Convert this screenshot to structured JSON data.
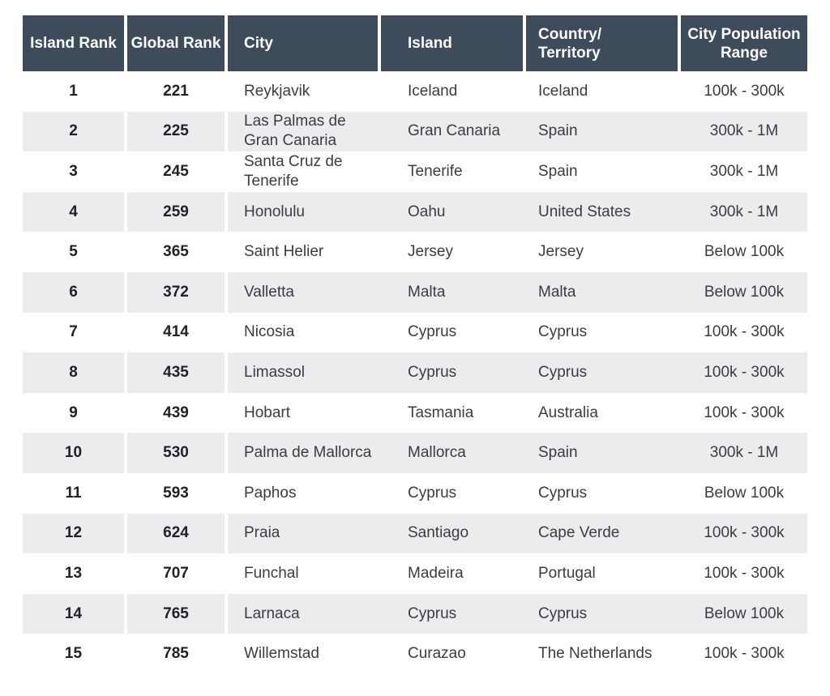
{
  "colors": {
    "header_bg": "#3e4b5a",
    "header_text": "#ffffff",
    "row_alt_bg": "#ebecee",
    "body_text": "#3c3c40",
    "rank_text": "#212126",
    "page_bg": "#ffffff"
  },
  "table": {
    "columns": [
      {
        "label": "Island Rank"
      },
      {
        "label": "Global Rank"
      },
      {
        "label": "City"
      },
      {
        "label": "Island"
      },
      {
        "label": "Country/\nTerritory"
      },
      {
        "label": "City Population\nRange"
      }
    ],
    "rows": [
      [
        "1",
        "221",
        "Reykjavik",
        "Iceland",
        "Iceland",
        "100k - 300k"
      ],
      [
        "2",
        "225",
        "Las Palmas de\nGran Canaria",
        "Gran Canaria",
        "Spain",
        "300k - 1M"
      ],
      [
        "3",
        "245",
        "Santa Cruz de\nTenerife",
        "Tenerife",
        "Spain",
        "300k - 1M"
      ],
      [
        "4",
        "259",
        "Honolulu",
        "Oahu",
        "United States",
        "300k - 1M"
      ],
      [
        "5",
        "365",
        "Saint Helier",
        "Jersey",
        "Jersey",
        "Below 100k"
      ],
      [
        "6",
        "372",
        "Valletta",
        "Malta",
        "Malta",
        "Below 100k"
      ],
      [
        "7",
        "414",
        "Nicosia",
        "Cyprus",
        "Cyprus",
        "100k - 300k"
      ],
      [
        "8",
        "435",
        "Limassol",
        "Cyprus",
        "Cyprus",
        "100k - 300k"
      ],
      [
        "9",
        "439",
        "Hobart",
        "Tasmania",
        "Australia",
        "100k - 300k"
      ],
      [
        "10",
        "530",
        "Palma de Mallorca",
        "Mallorca",
        "Spain",
        "300k - 1M"
      ],
      [
        "11",
        "593",
        "Paphos",
        "Cyprus",
        "Cyprus",
        "Below 100k"
      ],
      [
        "12",
        "624",
        "Praia",
        "Santiago",
        "Cape Verde",
        "100k - 300k"
      ],
      [
        "13",
        "707",
        "Funchal",
        "Madeira",
        "Portugal",
        "100k - 300k"
      ],
      [
        "14",
        "765",
        "Larnaca",
        "Cyprus",
        "Cyprus",
        "Below 100k"
      ],
      [
        "15",
        "785",
        "Willemstad",
        "Curazao",
        "The Netherlands",
        "100k - 300k"
      ]
    ]
  },
  "chart_data": {
    "type": "table",
    "title": "",
    "columns": [
      "Island Rank",
      "Global Rank",
      "City",
      "Island",
      "Country/Territory",
      "City Population Range"
    ],
    "rows": [
      [
        1,
        221,
        "Reykjavik",
        "Iceland",
        "Iceland",
        "100k - 300k"
      ],
      [
        2,
        225,
        "Las Palmas de Gran Canaria",
        "Gran Canaria",
        "Spain",
        "300k - 1M"
      ],
      [
        3,
        245,
        "Santa Cruz de Tenerife",
        "Tenerife",
        "Spain",
        "300k - 1M"
      ],
      [
        4,
        259,
        "Honolulu",
        "Oahu",
        "United States",
        "300k - 1M"
      ],
      [
        5,
        365,
        "Saint Helier",
        "Jersey",
        "Jersey",
        "Below 100k"
      ],
      [
        6,
        372,
        "Valletta",
        "Malta",
        "Malta",
        "Below 100k"
      ],
      [
        7,
        414,
        "Nicosia",
        "Cyprus",
        "Cyprus",
        "100k - 300k"
      ],
      [
        8,
        435,
        "Limassol",
        "Cyprus",
        "Cyprus",
        "100k - 300k"
      ],
      [
        9,
        439,
        "Hobart",
        "Tasmania",
        "Australia",
        "100k - 300k"
      ],
      [
        10,
        530,
        "Palma de Mallorca",
        "Mallorca",
        "Spain",
        "300k - 1M"
      ],
      [
        11,
        593,
        "Paphos",
        "Cyprus",
        "Cyprus",
        "Below 100k"
      ],
      [
        12,
        624,
        "Praia",
        "Santiago",
        "Cape Verde",
        "100k - 300k"
      ],
      [
        13,
        707,
        "Funchal",
        "Madeira",
        "Portugal",
        "100k - 300k"
      ],
      [
        14,
        765,
        "Larnaca",
        "Cyprus",
        "Cyprus",
        "Below 100k"
      ],
      [
        15,
        785,
        "Willemstad",
        "Curazao",
        "The Netherlands",
        "100k - 300k"
      ]
    ],
    "layout_hints": {
      "zebra_striping": true,
      "header_style": "dark",
      "grid": "off"
    }
  }
}
